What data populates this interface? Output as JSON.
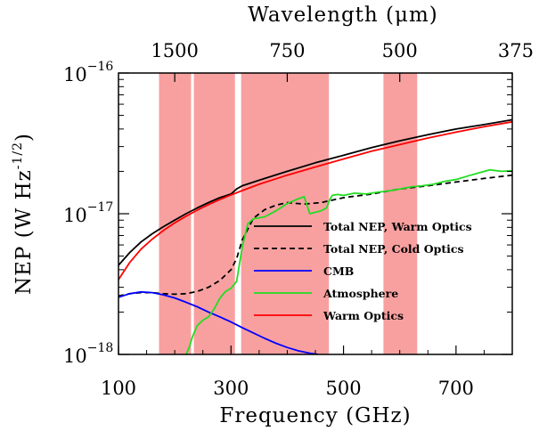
{
  "chart_data": {
    "type": "line",
    "title": "",
    "xlabel": "Frequency (GHz)",
    "ylabel": "NEP (W Hz^-1/2)",
    "ylabel_parts": {
      "main": "NEP (W Hz",
      "exponent": "-1/2",
      "close": ")"
    },
    "top_xlabel": "Wavelength (μm)",
    "xlim": [
      100,
      800
    ],
    "ylim": [
      1e-18,
      1e-16
    ],
    "y_scale": "log",
    "x_ticks": [
      100,
      300,
      500,
      700
    ],
    "x_tick_labels": [
      "100",
      "300",
      "500",
      "700"
    ],
    "y_ticks": [
      {
        "value": 1e-16,
        "base": "10",
        "exponent": "−16"
      },
      {
        "value": 1e-17,
        "base": "10",
        "exponent": "−17"
      },
      {
        "value": 1e-18,
        "base": "10",
        "exponent": "−18"
      }
    ],
    "top_ticks": [
      {
        "freq": 200,
        "label": "1500"
      },
      {
        "freq": 400,
        "label": "750"
      },
      {
        "freq": 600,
        "label": "500"
      },
      {
        "freq": 800,
        "label": "375"
      }
    ],
    "bands": [
      {
        "x0": 172,
        "x1": 229
      },
      {
        "x0": 234,
        "x1": 307
      },
      {
        "x0": 318,
        "x1": 474
      },
      {
        "x0": 571,
        "x1": 631
      }
    ],
    "band_color": "#f8a0a0",
    "legend_position": "center-right",
    "series": [
      {
        "name": "Total NEP, Warm Optics",
        "color": "#000000",
        "dash": "solid",
        "x": [
          100,
          120,
          140,
          160,
          180,
          200,
          220,
          240,
          260,
          280,
          300,
          310,
          320,
          350,
          400,
          450,
          500,
          550,
          600,
          650,
          700,
          750,
          800
        ],
        "y": [
          4.3e-18,
          5.3e-18,
          6.3e-18,
          7.2e-18,
          8.1e-18,
          9e-18,
          1e-17,
          1.1e-17,
          1.2e-17,
          1.3e-17,
          1.38e-17,
          1.5e-17,
          1.58e-17,
          1.73e-17,
          2e-17,
          2.3e-17,
          2.6e-17,
          2.95e-17,
          3.3e-17,
          3.65e-17,
          4e-17,
          4.3e-17,
          4.65e-17
        ]
      },
      {
        "name": "Total NEP, Cold Optics",
        "color": "#000000",
        "dash": "dashed",
        "x": [
          100,
          120,
          140,
          160,
          180,
          200,
          220,
          240,
          260,
          280,
          300,
          310,
          320,
          340,
          360,
          380,
          400,
          430,
          460,
          500,
          550,
          600,
          650,
          700,
          750,
          800
        ],
        "y": [
          2.6e-18,
          2.7e-18,
          2.75e-18,
          2.75e-18,
          2.7e-18,
          2.68e-18,
          2.7e-18,
          2.8e-18,
          3e-18,
          3.35e-18,
          4e-18,
          4.8e-18,
          6.5e-18,
          9.3e-18,
          1.07e-17,
          1.15e-17,
          1.2e-17,
          1.17e-17,
          1.2e-17,
          1.3e-17,
          1.38e-17,
          1.5e-17,
          1.58e-17,
          1.68e-17,
          1.78e-17,
          1.88e-17
        ]
      },
      {
        "name": "CMB",
        "color": "#0000ff",
        "dash": "solid",
        "x": [
          100,
          120,
          140,
          160,
          180,
          200,
          220,
          240,
          260,
          280,
          300,
          320,
          340,
          360,
          380,
          400,
          420,
          440,
          455
        ],
        "y": [
          2.55e-18,
          2.7e-18,
          2.78e-18,
          2.75e-18,
          2.65e-18,
          2.52e-18,
          2.35e-18,
          2.18e-18,
          2e-18,
          1.85e-18,
          1.7e-18,
          1.55e-18,
          1.42e-18,
          1.3e-18,
          1.2e-18,
          1.12e-18,
          1.06e-18,
          1.02e-18,
          1e-18
        ]
      },
      {
        "name": "Atmosphere",
        "color": "#22dd22",
        "dash": "solid",
        "x": [
          220,
          225,
          232,
          240,
          250,
          260,
          270,
          280,
          290,
          300,
          310,
          320,
          330,
          340,
          360,
          380,
          400,
          420,
          430,
          440,
          460,
          470,
          475,
          480,
          490,
          500,
          520,
          540,
          560,
          580,
          600,
          620,
          640,
          660,
          680,
          700,
          720,
          740,
          760,
          780,
          800
        ],
        "y": [
          1e-18,
          1.1e-18,
          1.35e-18,
          1.6e-18,
          1.75e-18,
          1.85e-18,
          2.1e-18,
          2.5e-18,
          2.8e-18,
          2.95e-18,
          3.3e-18,
          5.8e-18,
          8.5e-18,
          9.2e-18,
          9.5e-18,
          1.05e-17,
          1.18e-17,
          1.28e-17,
          1.32e-17,
          1e-17,
          1.05e-17,
          1.1e-17,
          1.25e-17,
          1.35e-17,
          1.37e-17,
          1.35e-17,
          1.4e-17,
          1.38e-17,
          1.42e-17,
          1.45e-17,
          1.5e-17,
          1.55e-17,
          1.58e-17,
          1.62e-17,
          1.7e-17,
          1.75e-17,
          1.85e-17,
          1.95e-17,
          2.05e-17,
          2e-17,
          2.02e-17
        ]
      },
      {
        "name": "Warm Optics",
        "color": "#ff0000",
        "dash": "solid",
        "x": [
          100,
          120,
          140,
          160,
          180,
          200,
          220,
          240,
          260,
          280,
          300,
          320,
          350,
          400,
          450,
          500,
          550,
          600,
          650,
          700,
          750,
          800
        ],
        "y": [
          3.4e-18,
          4.5e-18,
          5.6e-18,
          6.6e-18,
          7.6e-18,
          8.6e-18,
          9.6e-18,
          1.06e-17,
          1.16e-17,
          1.26e-17,
          1.36e-17,
          1.46e-17,
          1.62e-17,
          1.88e-17,
          2.15e-17,
          2.45e-17,
          2.78e-17,
          3.1e-17,
          3.45e-17,
          3.8e-17,
          4.15e-17,
          4.5e-17
        ]
      }
    ]
  }
}
